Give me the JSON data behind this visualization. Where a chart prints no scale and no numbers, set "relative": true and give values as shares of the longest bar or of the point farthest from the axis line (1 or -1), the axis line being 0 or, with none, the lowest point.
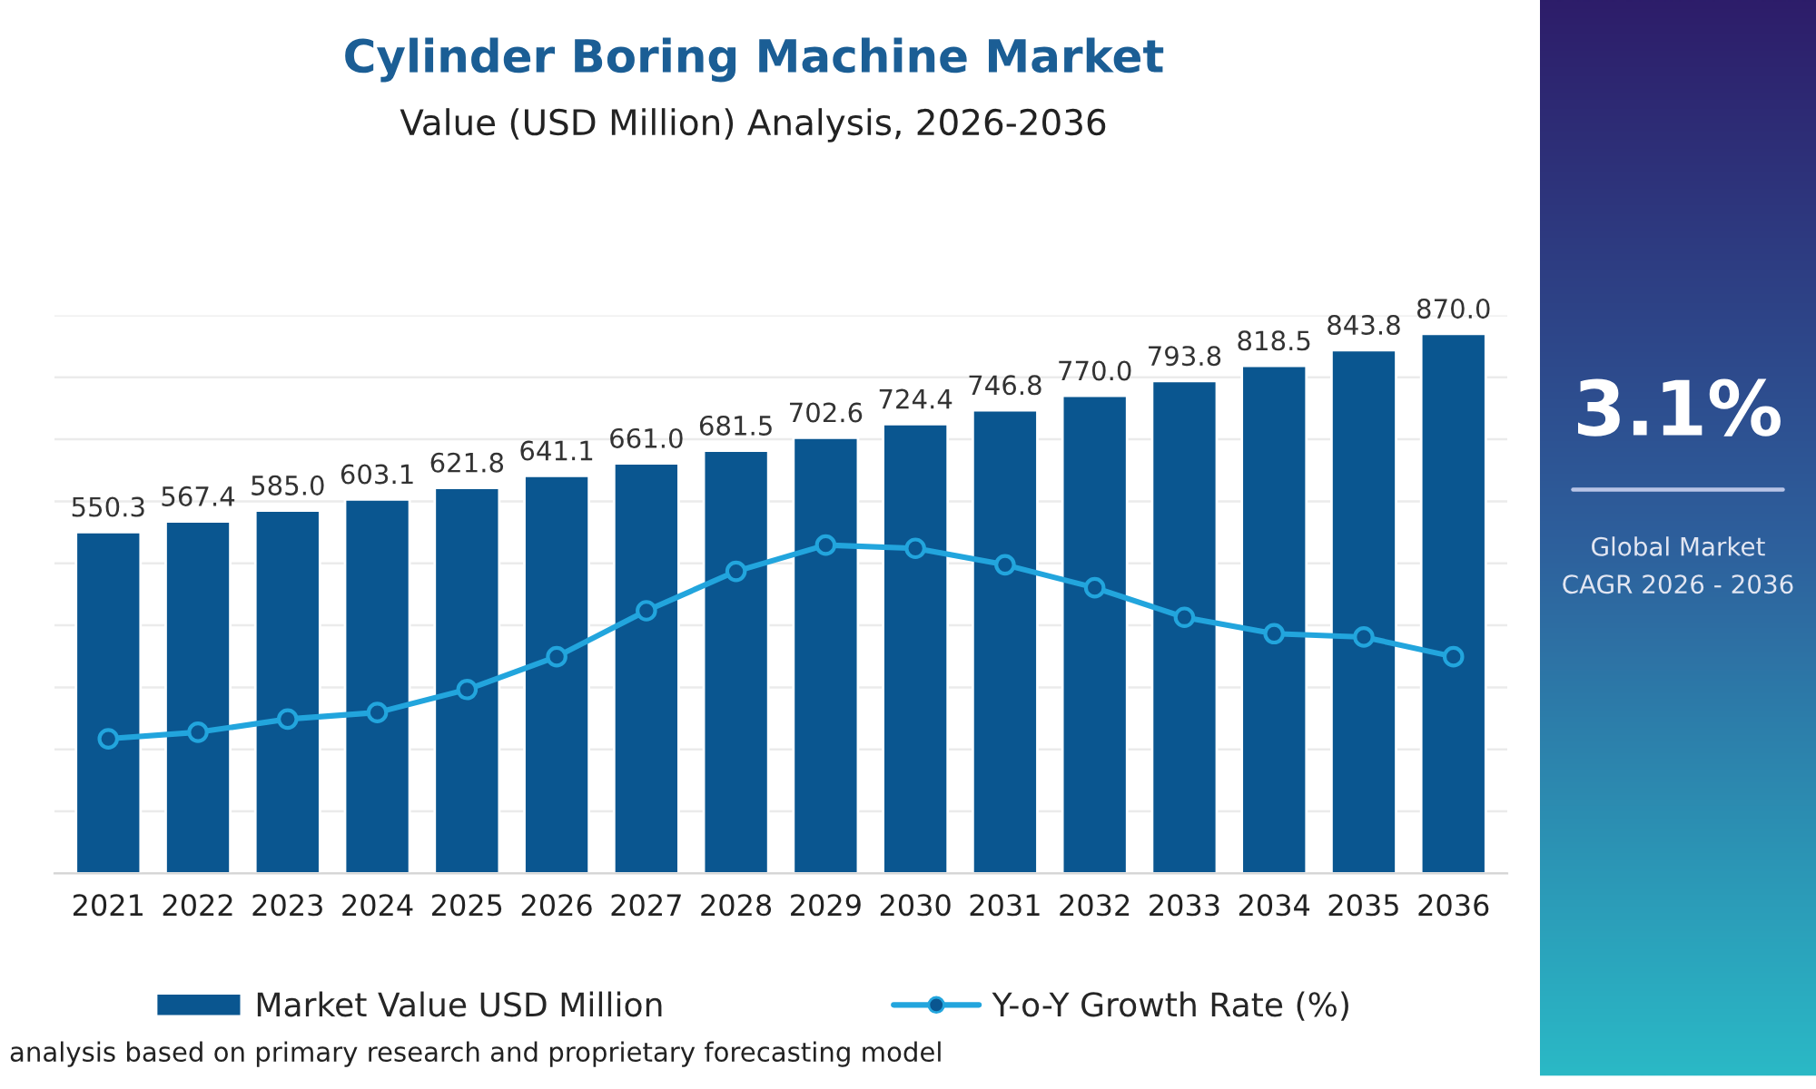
{
  "chart_data": [
    {
      "type": "bar",
      "title": "Cylinder Boring Machine Market",
      "subtitle": "Value (USD Million) Analysis, 2026-2036",
      "categories": [
        "2021",
        "2022",
        "2023",
        "2024",
        "2025",
        "2026",
        "2027",
        "2028",
        "2029",
        "2030",
        "2031",
        "2032",
        "2033",
        "2034",
        "2035",
        "2036"
      ],
      "series": [
        {
          "name": "Market Value USD Million",
          "type": "bar",
          "color": "#0a5690",
          "values": [
            550.3,
            567.4,
            585.0,
            603.1,
            621.8,
            641.1,
            661.0,
            681.5,
            702.6,
            724.4,
            746.8,
            770.0,
            793.8,
            818.5,
            843.8,
            870.0
          ],
          "value_labels": [
            "550.3",
            "567.4",
            "585.0",
            "603.1",
            "621.8",
            "641.1",
            "661.0",
            "681.5",
            "702.6",
            "724.4",
            "746.8",
            "770.0",
            "793.8",
            "818.5",
            "843.8",
            "870.0"
          ]
        }
      ],
      "ylim": [
        0,
        900
      ],
      "yticks": [
        {
          "value": 0,
          "label": null
        },
        {
          "value": 100,
          "label": null
        },
        {
          "value": 200,
          "label": null
        },
        {
          "value": 300,
          "label": null
        },
        {
          "value": 400,
          "label": null
        },
        {
          "value": 500,
          "label": null
        },
        {
          "value": 600,
          "label": null
        },
        {
          "value": 700,
          "label": null
        },
        {
          "value": 800,
          "label": null
        },
        {
          "value": 900,
          "label": null
        }
      ],
      "grid": "y",
      "legend": "bottom",
      "annotations": [
        "analysis based on primary research and proprietary forecasting model"
      ]
    },
    {
      "type": "line",
      "relative": true,
      "legend": "bottom",
      "tick_labels": false,
      "marker": "circle",
      "line_style": "solid",
      "categories": [
        "2021",
        "2022",
        "2023",
        "2024",
        "2025",
        "2026",
        "2027",
        "2028",
        "2029",
        "2030",
        "2031",
        "2032",
        "2033",
        "2034",
        "2035",
        "2036"
      ],
      "series": [
        {
          "name": "Y-o-Y Growth Rate (%)",
          "type": "line",
          "color": "#22a5dd",
          "values": [
            0.41,
            0.43,
            0.47,
            0.49,
            0.56,
            0.66,
            0.8,
            0.92,
            1,
            0.99,
            0.94,
            0.87,
            0.78,
            0.73,
            0.72,
            0.66
          ]
        }
      ]
    },
    {
      "type": "other",
      "title": "3.1%",
      "annotations": [
        "Global Market",
        "CAGR 2026 - 2036"
      ]
    }
  ]
}
